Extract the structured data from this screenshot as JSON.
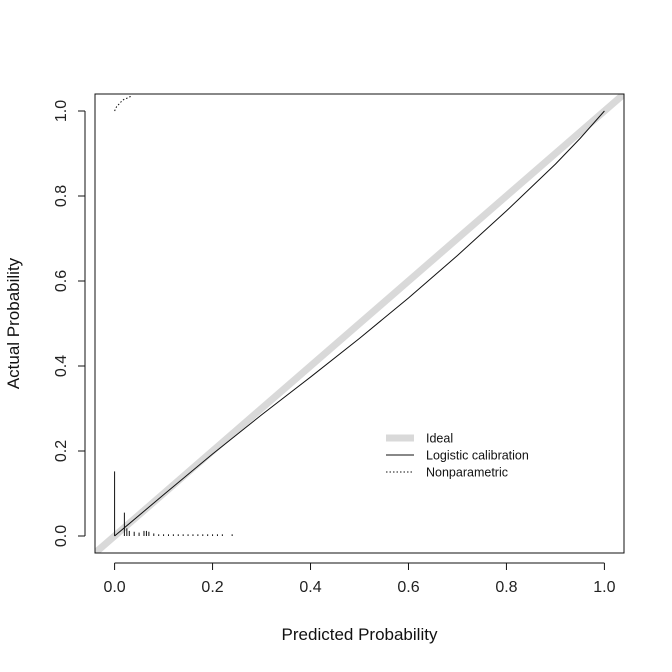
{
  "chart_data": {
    "type": "line",
    "title": "",
    "xlabel": "Predicted Probability",
    "ylabel": "Actual Probability",
    "xlim": [
      -0.04,
      1.04
    ],
    "ylim": [
      -0.04,
      1.04
    ],
    "x_ticks": [
      0.0,
      0.2,
      0.4,
      0.6,
      0.8,
      1.0
    ],
    "y_ticks": [
      0.0,
      0.2,
      0.4,
      0.6,
      0.8,
      1.0
    ],
    "x_tick_labels": [
      "0.0",
      "0.2",
      "0.4",
      "0.6",
      "0.8",
      "1.0"
    ],
    "y_tick_labels": [
      "0.0",
      "0.2",
      "0.4",
      "0.6",
      "0.8",
      "1.0"
    ],
    "grid": false,
    "legend_position": "right",
    "series": [
      {
        "name": "Ideal",
        "style": "thick-gray",
        "color": "#d9d9d9",
        "x": [
          -0.04,
          1.04
        ],
        "y": [
          -0.04,
          1.04
        ]
      },
      {
        "name": "Logistic calibration",
        "style": "solid",
        "color": "#111111",
        "x": [
          0.0,
          0.1,
          0.2,
          0.3,
          0.4,
          0.5,
          0.6,
          0.7,
          0.8,
          0.9,
          0.95,
          1.0
        ],
        "y": [
          0.0,
          0.097,
          0.193,
          0.285,
          0.374,
          0.465,
          0.56,
          0.66,
          0.765,
          0.875,
          0.935,
          1.0
        ]
      },
      {
        "name": "Nonparametric",
        "style": "dotted",
        "color": "#111111",
        "x": [
          0.0,
          0.004,
          0.008,
          0.012,
          0.016,
          0.02,
          0.025,
          0.03,
          0.035
        ],
        "y": [
          1.0,
          1.01,
          1.015,
          1.02,
          1.025,
          1.028,
          1.03,
          1.033,
          1.035
        ]
      }
    ],
    "rug_ticks": {
      "x": [
        0.0,
        0.02,
        0.025,
        0.03,
        0.04,
        0.05,
        0.06,
        0.065,
        0.07,
        0.08,
        0.09,
        0.1,
        0.11,
        0.12,
        0.13,
        0.14,
        0.15,
        0.16,
        0.17,
        0.18,
        0.19,
        0.2,
        0.21,
        0.22,
        0.24
      ],
      "height": [
        0.152,
        0.055,
        0.018,
        0.012,
        0.01,
        0.008,
        0.012,
        0.012,
        0.01,
        0.006,
        0.004,
        0.004,
        0.004,
        0.004,
        0.004,
        0.004,
        0.004,
        0.004,
        0.004,
        0.004,
        0.004,
        0.004,
        0.004,
        0.004,
        0.004
      ]
    }
  }
}
